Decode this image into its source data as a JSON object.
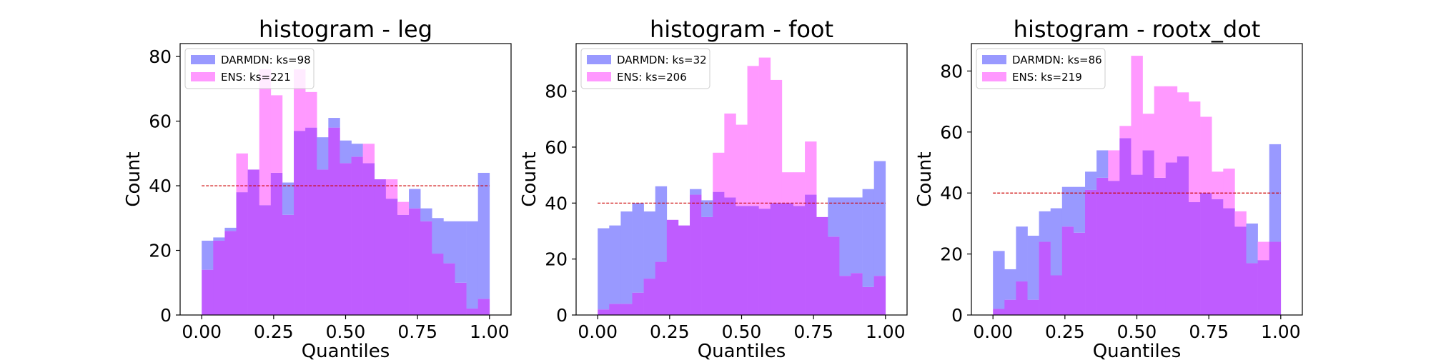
{
  "figure": {
    "background": "#ffffff"
  },
  "colors": {
    "darmdn": "#9999ff",
    "ens": "#ff99ff",
    "overlap": "#bf5cff",
    "reference": "#cc0000"
  },
  "chart_data": [
    {
      "type": "histogram",
      "title": "histogram - leg",
      "xlabel": "Quantiles",
      "ylabel": "Count",
      "xlim": [
        -0.075,
        1.075
      ],
      "ylim": [
        0,
        84
      ],
      "xticks": [
        0.0,
        0.25,
        0.5,
        0.75,
        1.0
      ],
      "xtick_labels": [
        "0.00",
        "0.25",
        "0.50",
        "0.75",
        "1.00"
      ],
      "yticks": [
        0,
        20,
        40,
        60,
        80
      ],
      "bin_edges_range": [
        0,
        1
      ],
      "reference_line": 40,
      "legend_position": "upper left",
      "series": [
        {
          "name": "DARMDN: ks=98",
          "values": [
            23,
            24,
            27,
            38,
            45,
            34,
            44,
            41,
            57,
            58,
            55,
            61,
            54,
            53,
            47,
            42,
            36,
            31,
            39,
            33,
            30,
            29,
            29,
            29,
            44
          ]
        },
        {
          "name": "ENS: ks=221",
          "values": [
            14,
            23,
            26,
            50,
            45,
            76,
            68,
            31,
            76,
            69,
            45,
            58,
            47,
            49,
            53,
            42,
            42,
            35,
            33,
            29,
            19,
            16,
            10,
            2,
            5
          ]
        }
      ]
    },
    {
      "type": "histogram",
      "title": "histogram - foot",
      "xlabel": "Quantiles",
      "ylabel": "Count",
      "xlim": [
        -0.075,
        1.075
      ],
      "ylim": [
        0,
        97
      ],
      "xticks": [
        0.0,
        0.25,
        0.5,
        0.75,
        1.0
      ],
      "xtick_labels": [
        "0.00",
        "0.25",
        "0.50",
        "0.75",
        "1.00"
      ],
      "yticks": [
        0,
        20,
        40,
        60,
        80
      ],
      "bin_edges_range": [
        0,
        1
      ],
      "reference_line": 40,
      "legend_position": "upper left",
      "series": [
        {
          "name": "DARMDN: ks=32",
          "values": [
            31,
            32,
            37,
            40,
            37,
            46,
            34,
            32,
            45,
            41,
            44,
            42,
            39,
            39,
            38,
            40,
            40,
            39,
            43,
            35,
            42,
            42,
            42,
            45,
            55
          ]
        },
        {
          "name": "ENS: ks=206",
          "values": [
            2,
            4,
            4,
            8,
            13,
            19,
            34,
            32,
            43,
            35,
            58,
            72,
            68,
            89,
            92,
            84,
            51,
            51,
            62,
            35,
            28,
            14,
            15,
            10,
            14
          ]
        }
      ]
    },
    {
      "type": "histogram",
      "title": "histogram - rootx_dot",
      "xlabel": "Quantiles",
      "ylabel": "Count",
      "xlim": [
        -0.075,
        1.075
      ],
      "ylim": [
        0,
        89
      ],
      "xticks": [
        0.0,
        0.25,
        0.5,
        0.75,
        1.0
      ],
      "xtick_labels": [
        "0.00",
        "0.25",
        "0.50",
        "0.75",
        "1.00"
      ],
      "yticks": [
        0,
        20,
        40,
        60,
        80
      ],
      "bin_edges_range": [
        0,
        1
      ],
      "reference_line": 40,
      "legend_position": "upper left",
      "series": [
        {
          "name": "DARMDN: ks=86",
          "values": [
            21,
            15,
            29,
            26,
            34,
            35,
            42,
            42,
            47,
            54,
            44,
            58,
            46,
            54,
            45,
            50,
            52,
            37,
            40,
            38,
            35,
            29,
            30,
            18,
            56
          ]
        },
        {
          "name": "ENS: ks=219",
          "values": [
            2,
            5,
            11,
            5,
            24,
            13,
            29,
            27,
            41,
            45,
            54,
            62,
            85,
            66,
            75,
            75,
            73,
            70,
            65,
            47,
            48,
            34,
            17,
            24,
            24
          ]
        }
      ]
    }
  ]
}
